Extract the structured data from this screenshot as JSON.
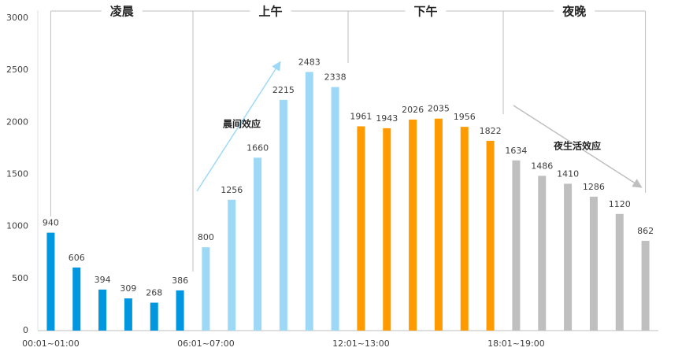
{
  "chart_data": {
    "type": "bar",
    "categories": [
      "00:01~01:00",
      null,
      null,
      null,
      null,
      null,
      "06:01~07:00",
      null,
      null,
      null,
      null,
      null,
      "12:01~13:00",
      null,
      null,
      null,
      null,
      null,
      "18:01~19:00",
      null,
      null,
      null,
      null,
      null
    ],
    "values": [
      940,
      606,
      394,
      309,
      268,
      386,
      800,
      1256,
      1660,
      2215,
      2483,
      2338,
      1961,
      1943,
      2026,
      2035,
      1956,
      1822,
      1634,
      1486,
      1410,
      1286,
      1120,
      862
    ],
    "colors": [
      "#0097e0",
      "#0097e0",
      "#0097e0",
      "#0097e0",
      "#0097e0",
      "#0097e0",
      "#9dd9f7",
      "#9dd9f7",
      "#9dd9f7",
      "#9dd9f7",
      "#9dd9f7",
      "#9dd9f7",
      "#ff9a00",
      "#ff9a00",
      "#ff9a00",
      "#ff9a00",
      "#ff9a00",
      "#ff9a00",
      "#bfbfbf",
      "#bfbfbf",
      "#bfbfbf",
      "#bfbfbf",
      "#bfbfbf",
      "#bfbfbf"
    ],
    "ylim": [
      0,
      3000
    ],
    "yticks": [
      0,
      500,
      1000,
      1500,
      2000,
      2500,
      3000
    ],
    "grid": false,
    "periods": [
      "凌晨",
      "上午",
      "下午",
      "夜晚"
    ],
    "annotations": [
      "晨间效应",
      "夜生活效应"
    ]
  }
}
